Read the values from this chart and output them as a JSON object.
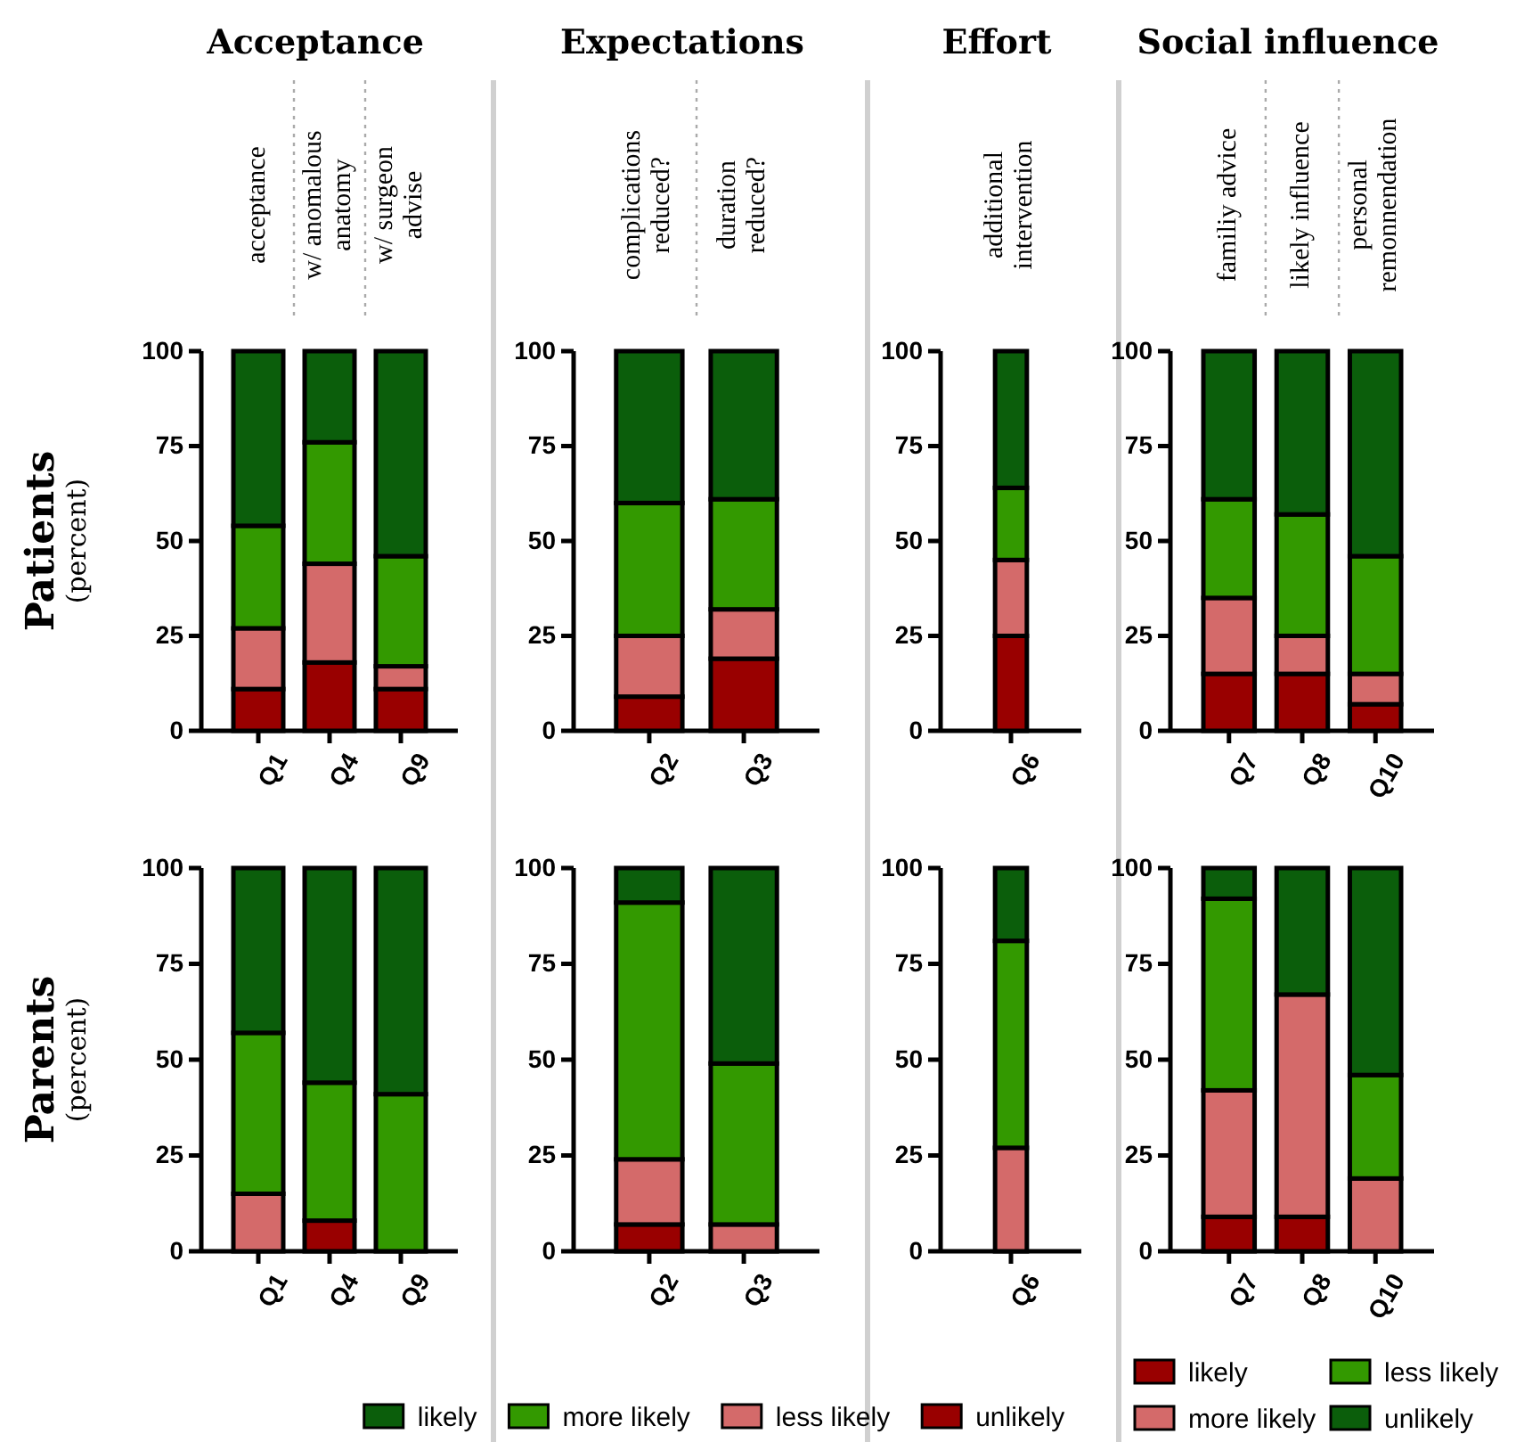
{
  "chart_data": [
    {
      "type": "bar",
      "stacked": true,
      "title": "Acceptance",
      "ylabel": "Patients (percent)",
      "categories": [
        "Q1",
        "Q4",
        "Q9"
      ],
      "ylim": [
        0,
        100
      ],
      "yticks": [
        0,
        25,
        50,
        75,
        100
      ],
      "annotations": [
        "acceptance",
        "w/ anomalous anatomy",
        "w/ surgeon advise"
      ],
      "series": [
        {
          "color": "#990000",
          "values": [
            11,
            18,
            11
          ]
        },
        {
          "color": "#d46a6a",
          "values": [
            16,
            26,
            6
          ]
        },
        {
          "color": "#339900",
          "values": [
            27,
            32,
            29
          ]
        },
        {
          "color": "#0b5e0b",
          "values": [
            46,
            24,
            54
          ]
        }
      ]
    },
    {
      "type": "bar",
      "stacked": true,
      "title": "Expectations",
      "categories": [
        "Q2",
        "Q3"
      ],
      "ylim": [
        0,
        100
      ],
      "yticks": [
        0,
        25,
        50,
        75,
        100
      ],
      "annotations": [
        "complications reduced?",
        "duration reduced?"
      ],
      "series": [
        {
          "color": "#990000",
          "values": [
            9,
            19
          ]
        },
        {
          "color": "#d46a6a",
          "values": [
            16,
            13
          ]
        },
        {
          "color": "#339900",
          "values": [
            35,
            29
          ]
        },
        {
          "color": "#0b5e0b",
          "values": [
            40,
            39
          ]
        }
      ]
    },
    {
      "type": "bar",
      "stacked": true,
      "title": "Effort",
      "categories": [
        "Q6"
      ],
      "ylim": [
        0,
        100
      ],
      "yticks": [
        0,
        25,
        50,
        75,
        100
      ],
      "annotations": [
        "additional intervention"
      ],
      "series": [
        {
          "color": "#990000",
          "values": [
            25
          ]
        },
        {
          "color": "#d46a6a",
          "values": [
            20
          ]
        },
        {
          "color": "#339900",
          "values": [
            19
          ]
        },
        {
          "color": "#0b5e0b",
          "values": [
            36
          ]
        }
      ]
    },
    {
      "type": "bar",
      "stacked": true,
      "title": "Social influence",
      "categories": [
        "Q7",
        "Q8",
        "Q10"
      ],
      "ylim": [
        0,
        100
      ],
      "yticks": [
        0,
        25,
        50,
        75,
        100
      ],
      "annotations": [
        "familiy advice",
        "likely influence",
        "personal remonnendation"
      ],
      "series": [
        {
          "color": "#990000",
          "values": [
            15,
            15,
            7
          ]
        },
        {
          "color": "#d46a6a",
          "values": [
            20,
            10,
            8
          ]
        },
        {
          "color": "#339900",
          "values": [
            26,
            32,
            31
          ]
        },
        {
          "color": "#0b5e0b",
          "values": [
            39,
            43,
            54
          ]
        }
      ]
    },
    {
      "type": "bar",
      "stacked": true,
      "ylabel": "Parents (percent)",
      "categories": [
        "Q1",
        "Q4",
        "Q9"
      ],
      "ylim": [
        0,
        100
      ],
      "yticks": [
        0,
        25,
        50,
        75,
        100
      ],
      "series": [
        {
          "color": "#990000",
          "values": [
            0,
            8,
            0
          ]
        },
        {
          "color": "#d46a6a",
          "values": [
            15,
            0,
            0
          ]
        },
        {
          "color": "#339900",
          "values": [
            42,
            36,
            41
          ]
        },
        {
          "color": "#0b5e0b",
          "values": [
            43,
            56,
            59
          ]
        }
      ]
    },
    {
      "type": "bar",
      "stacked": true,
      "categories": [
        "Q2",
        "Q3"
      ],
      "ylim": [
        0,
        100
      ],
      "yticks": [
        0,
        25,
        50,
        75,
        100
      ],
      "legend": "bottom",
      "series": [
        {
          "name": "unlikely",
          "color": "#990000",
          "values": [
            7,
            0
          ]
        },
        {
          "name": "less likely",
          "color": "#d46a6a",
          "values": [
            17,
            7
          ]
        },
        {
          "name": "more likely",
          "color": "#339900",
          "values": [
            67,
            42
          ]
        },
        {
          "name": "likely",
          "color": "#0b5e0b",
          "values": [
            9,
            51
          ]
        }
      ]
    },
    {
      "type": "bar",
      "stacked": true,
      "categories": [
        "Q6"
      ],
      "ylim": [
        0,
        100
      ],
      "yticks": [
        0,
        25,
        50,
        75,
        100
      ],
      "series": [
        {
          "color": "#990000",
          "values": [
            0
          ]
        },
        {
          "color": "#d46a6a",
          "values": [
            27
          ]
        },
        {
          "color": "#339900",
          "values": [
            54
          ]
        },
        {
          "color": "#0b5e0b",
          "values": [
            19
          ]
        }
      ]
    },
    {
      "type": "bar",
      "stacked": true,
      "categories": [
        "Q7",
        "Q8",
        "Q10"
      ],
      "ylim": [
        0,
        100
      ],
      "yticks": [
        0,
        25,
        50,
        75,
        100
      ],
      "legend": "bottom",
      "series": [
        {
          "name": "likely",
          "color": "#990000",
          "values": [
            9,
            9,
            0
          ]
        },
        {
          "name": "more likely",
          "color": "#d46a6a",
          "values": [
            33,
            58,
            19
          ]
        },
        {
          "name": "less likely",
          "color": "#339900",
          "values": [
            50,
            0,
            27
          ]
        },
        {
          "name": "unlikely",
          "color": "#0b5e0b",
          "values": [
            8,
            33,
            54
          ]
        }
      ]
    }
  ]
}
